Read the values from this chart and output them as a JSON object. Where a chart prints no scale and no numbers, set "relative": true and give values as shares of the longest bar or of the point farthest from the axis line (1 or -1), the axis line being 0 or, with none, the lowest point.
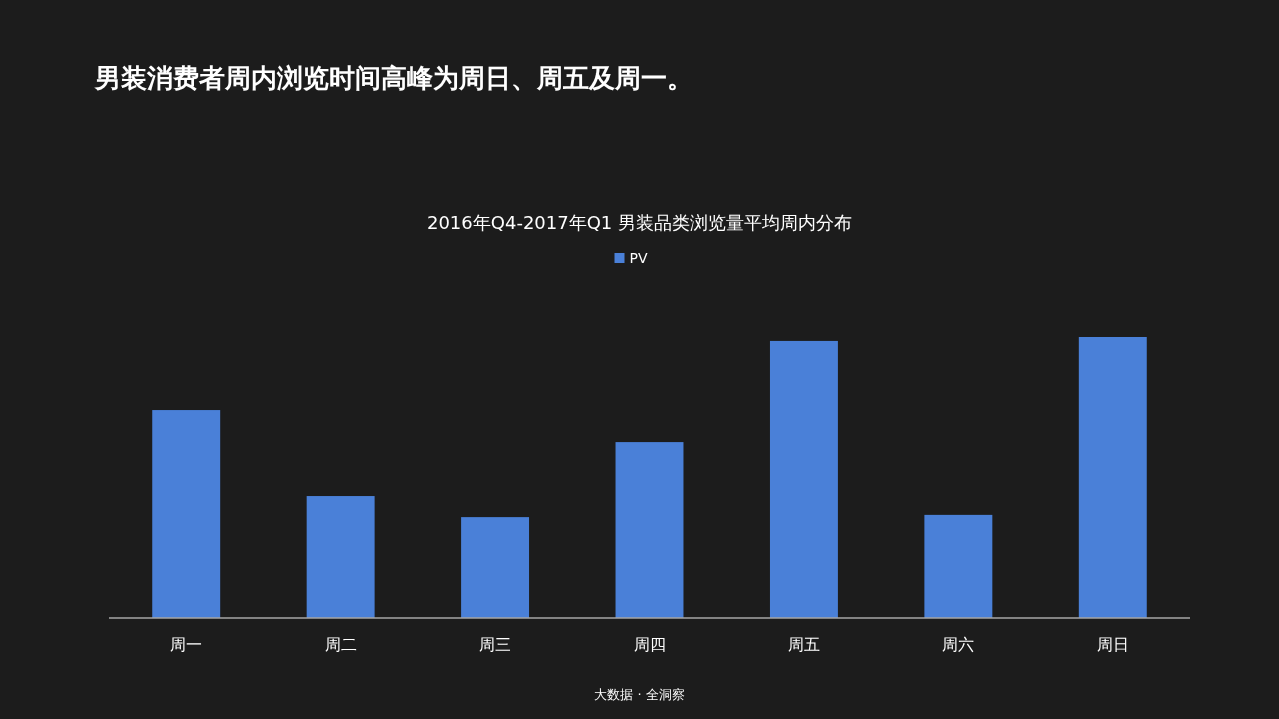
{
  "chart_data": {
    "type": "bar",
    "title": "男装消费者周内浏览时间高峰为周日、周五及周一。",
    "subtitle": "2016年Q4-2017年Q1  男装品类浏览量平均周内分布",
    "categories": [
      "周一",
      "周二",
      "周三",
      "周四",
      "周五",
      "周六",
      "周日"
    ],
    "series": [
      {
        "name": "PV",
        "color": "#4a80d8",
        "values": [
          0.74,
          0.434,
          0.359,
          0.626,
          0.986,
          0.367,
          1
        ]
      }
    ],
    "relative": true,
    "legend": "top",
    "annotations": [
      "大数据 · 全洞察"
    ]
  }
}
